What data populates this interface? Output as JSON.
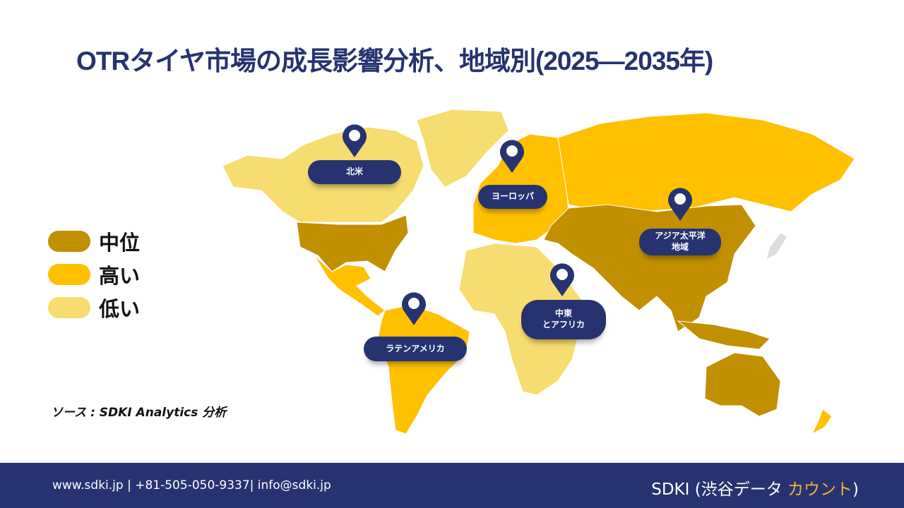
{
  "title": "OTRタイヤ市場の成長影響分析、地域別(2025—2035年)",
  "colors": {
    "medium": "#C18F00",
    "high": "#FFC000",
    "low": "#F7DC6F",
    "navy": "#263370"
  },
  "legend": [
    {
      "label": "中位",
      "level": "medium"
    },
    {
      "label": "高い",
      "level": "high"
    },
    {
      "label": "低い",
      "level": "low"
    }
  ],
  "regions": [
    {
      "label": "北米",
      "level": "medium/low"
    },
    {
      "label": "ヨーロッパ",
      "level": "high"
    },
    {
      "label": "アジア太平洋地域",
      "line1": "アジア太平洋",
      "line2": "地域",
      "level": "medium"
    },
    {
      "label": "中東とアフリカ",
      "line1": "中東",
      "line2": "とアフリカ",
      "level": "low"
    },
    {
      "label": "ラテンアメリカ",
      "level": "high"
    }
  ],
  "source": "ソース : SDKI Analytics 分析",
  "footer": {
    "contact": "www.sdki.jp | +81-505-050-9337| info@sdki.jp",
    "brand_main": "SDKI (渋谷データ ",
    "brand_accent": "カウント",
    "brand_end": ")"
  }
}
